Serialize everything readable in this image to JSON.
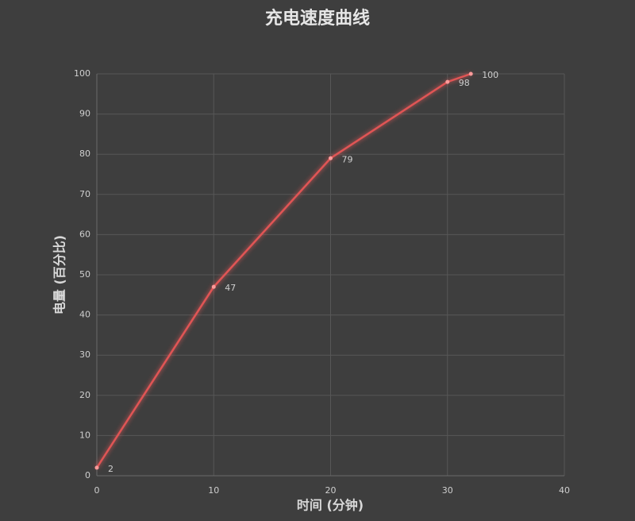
{
  "chart_data": {
    "type": "line",
    "title": "充电速度曲线",
    "x_label": "时间 (分钟)",
    "y_label": "电量 (百分比)",
    "x": [
      0,
      10,
      20,
      30,
      32
    ],
    "series": [
      {
        "name": "电量",
        "color": "#e05555",
        "values": [
          2,
          47,
          79,
          98,
          100
        ]
      }
    ],
    "xlim": [
      0,
      40
    ],
    "xticks": [
      0,
      10,
      20,
      30,
      40
    ],
    "ylim": [
      0,
      100
    ],
    "yticks": [
      0,
      10,
      20,
      30,
      40,
      50,
      60,
      70,
      80,
      90,
      100
    ],
    "grid": true,
    "data_labels": true
  }
}
